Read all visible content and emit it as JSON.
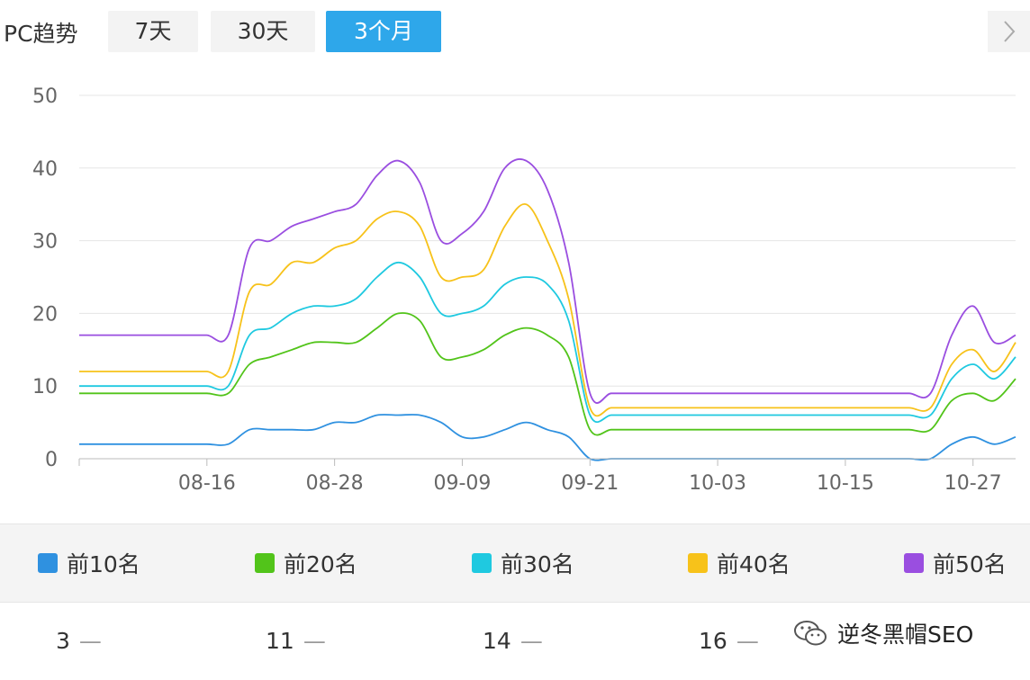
{
  "header": {
    "title": "PC趋势",
    "ranges": [
      {
        "label": "7天",
        "active": false
      },
      {
        "label": "30天",
        "active": false
      },
      {
        "label": "3个月",
        "active": true
      }
    ]
  },
  "chart_data": {
    "type": "line",
    "title": "",
    "xlabel": "",
    "ylabel": "",
    "ylim": [
      0,
      50
    ],
    "yticks": [
      0,
      10,
      20,
      30,
      40,
      50
    ],
    "grid": true,
    "x_ticks": [
      "08-16",
      "08-28",
      "09-09",
      "09-21",
      "10-03",
      "10-15",
      "10-27"
    ],
    "x": [
      "08-04",
      "08-06",
      "08-08",
      "08-10",
      "08-12",
      "08-14",
      "08-16",
      "08-18",
      "08-20",
      "08-22",
      "08-24",
      "08-26",
      "08-28",
      "08-30",
      "09-01",
      "09-03",
      "09-05",
      "09-07",
      "09-09",
      "09-11",
      "09-13",
      "09-15",
      "09-17",
      "09-19",
      "09-21",
      "09-23",
      "09-25",
      "09-27",
      "09-29",
      "10-01",
      "10-03",
      "10-05",
      "10-07",
      "10-09",
      "10-11",
      "10-13",
      "10-15",
      "10-17",
      "10-19",
      "10-21",
      "10-23",
      "10-25",
      "10-27",
      "10-29",
      "10-31"
    ],
    "series": [
      {
        "name": "前10名",
        "color": "#2f91e0",
        "values": [
          2,
          2,
          2,
          2,
          2,
          2,
          2,
          2,
          4,
          4,
          4,
          4,
          5,
          5,
          6,
          6,
          6,
          5,
          3,
          3,
          4,
          5,
          4,
          3,
          0,
          0,
          0,
          0,
          0,
          0,
          0,
          0,
          0,
          0,
          0,
          0,
          0,
          0,
          0,
          0,
          0,
          2,
          3,
          2,
          3
        ]
      },
      {
        "name": "前20名",
        "color": "#52c41a",
        "values": [
          9,
          9,
          9,
          9,
          9,
          9,
          9,
          9,
          13,
          14,
          15,
          16,
          16,
          16,
          18,
          20,
          19,
          14,
          14,
          15,
          17,
          18,
          17,
          14,
          4,
          4,
          4,
          4,
          4,
          4,
          4,
          4,
          4,
          4,
          4,
          4,
          4,
          4,
          4,
          4,
          4,
          8,
          9,
          8,
          11
        ]
      },
      {
        "name": "前30名",
        "color": "#1fc9e0",
        "values": [
          10,
          10,
          10,
          10,
          10,
          10,
          10,
          10,
          17,
          18,
          20,
          21,
          21,
          22,
          25,
          27,
          25,
          20,
          20,
          21,
          24,
          25,
          24,
          19,
          6,
          6,
          6,
          6,
          6,
          6,
          6,
          6,
          6,
          6,
          6,
          6,
          6,
          6,
          6,
          6,
          6,
          11,
          13,
          11,
          14
        ]
      },
      {
        "name": "前40名",
        "color": "#f7c21a",
        "values": [
          12,
          12,
          12,
          12,
          12,
          12,
          12,
          12,
          23,
          24,
          27,
          27,
          29,
          30,
          33,
          34,
          32,
          25,
          25,
          26,
          32,
          35,
          30,
          22,
          7,
          7,
          7,
          7,
          7,
          7,
          7,
          7,
          7,
          7,
          7,
          7,
          7,
          7,
          7,
          7,
          7,
          13,
          15,
          12,
          16
        ]
      },
      {
        "name": "前50名",
        "color": "#9a4ee0",
        "values": [
          17,
          17,
          17,
          17,
          17,
          17,
          17,
          17,
          29,
          30,
          32,
          33,
          34,
          35,
          39,
          41,
          38,
          30,
          31,
          34,
          40,
          41,
          37,
          27,
          9,
          9,
          9,
          9,
          9,
          9,
          9,
          9,
          9,
          9,
          9,
          9,
          9,
          9,
          9,
          9,
          9,
          17,
          21,
          16,
          17
        ]
      }
    ]
  },
  "legend": [
    {
      "label": "前10名",
      "color": "#2f91e0"
    },
    {
      "label": "前20名",
      "color": "#52c41a"
    },
    {
      "label": "前30名",
      "color": "#1fc9e0"
    },
    {
      "label": "前40名",
      "color": "#f7c21a"
    },
    {
      "label": "前50名",
      "color": "#9a4ee0"
    }
  ],
  "values_row": [
    {
      "value": "3",
      "dash": "—"
    },
    {
      "value": "11",
      "dash": "—"
    },
    {
      "value": "14",
      "dash": "—"
    },
    {
      "value": "16",
      "dash": "—"
    }
  ],
  "watermark": {
    "text": "逆冬黑帽SEO",
    "icon": "wechat-icon"
  }
}
